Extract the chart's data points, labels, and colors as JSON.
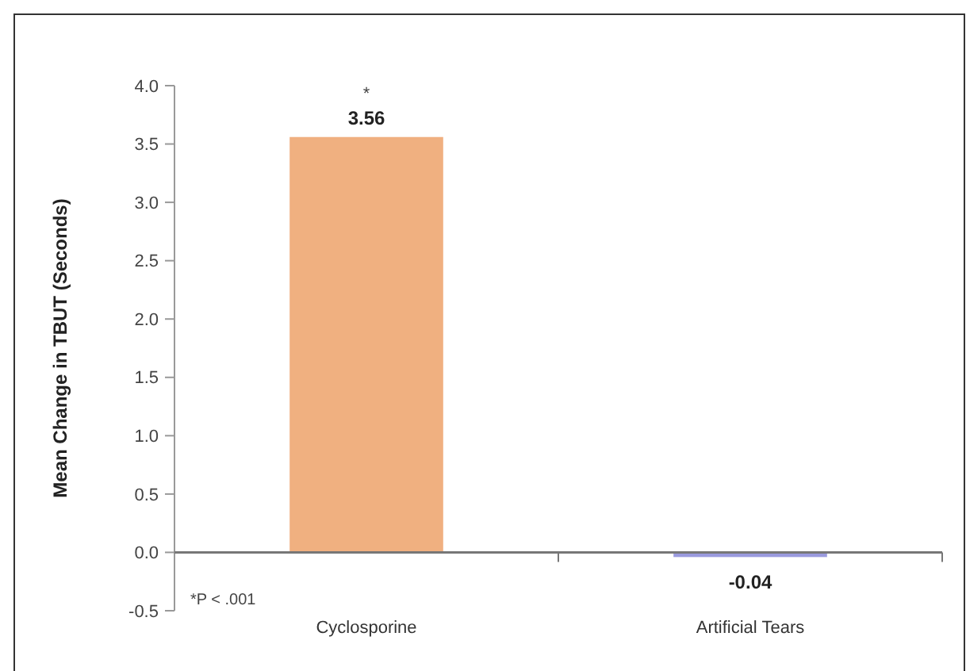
{
  "chart_data": {
    "type": "bar",
    "ylabel": "Mean Change in TBUT (Seconds)",
    "categories": [
      "Cyclosporine",
      "Artificial Tears"
    ],
    "values": [
      3.56,
      -0.04
    ],
    "colors": [
      "#f0b080",
      "#9a9ade"
    ],
    "ylim": [
      -0.5,
      4.0
    ],
    "yticks": [
      {
        "value": -0.5,
        "label": "-0.5"
      },
      {
        "value": 0,
        "label": "0.0"
      },
      {
        "value": 0.5,
        "label": "0.5"
      },
      {
        "value": 1,
        "label": "1.0"
      },
      {
        "value": 1.5,
        "label": "1.5"
      },
      {
        "value": 2,
        "label": "2.0"
      },
      {
        "value": 2.5,
        "label": "2.5"
      },
      {
        "value": 3,
        "label": "3.0"
      },
      {
        "value": 3.5,
        "label": "3.5"
      },
      {
        "value": 4,
        "label": "4.0"
      }
    ],
    "data_labels": true,
    "annotations": [
      {
        "text": "*",
        "x": "Cyclosporine",
        "y": 3.56
      },
      "*P < .001"
    ]
  }
}
